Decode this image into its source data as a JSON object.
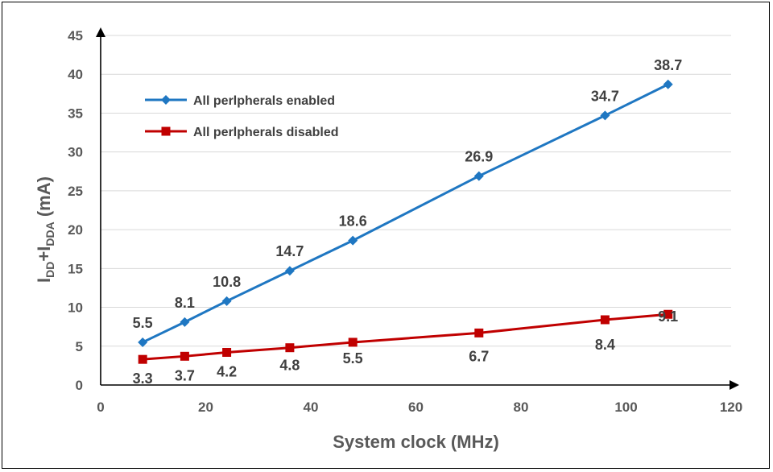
{
  "chart_data": {
    "type": "line",
    "xlabel": "System clock (MHz)",
    "ylabel": "I_DD+I_DDA (mA)",
    "ylabel_parts": [
      "I",
      "DD",
      "+I",
      "DDA",
      " (mA)"
    ],
    "xlim": [
      0,
      120
    ],
    "ylim": [
      0,
      45
    ],
    "xticks": [
      0,
      20,
      40,
      60,
      80,
      100,
      120
    ],
    "yticks": [
      0,
      5,
      10,
      15,
      20,
      25,
      30,
      35,
      40,
      45
    ],
    "grid": "horizontal",
    "legend_position": "top-left",
    "x": [
      8,
      16,
      24,
      36,
      48,
      72,
      96,
      108
    ],
    "series": [
      {
        "name": "All perlpherals enabled",
        "color": "#1F77C2",
        "marker": "diamond",
        "values": [
          5.5,
          8.1,
          10.8,
          14.7,
          18.6,
          26.9,
          34.7,
          38.7
        ],
        "labels": [
          "5.5",
          "8.1",
          "10.8",
          "14.7",
          "18.6",
          "26.9",
          "34.7",
          "38.7"
        ]
      },
      {
        "name": "All perlpherals disabled",
        "color": "#C00000",
        "marker": "square",
        "values": [
          3.3,
          3.7,
          4.2,
          4.8,
          5.5,
          6.7,
          8.4,
          9.1
        ],
        "labels": [
          "3.3",
          "3.7",
          "4.2",
          "4.8",
          "5.5",
          "6.7",
          "8.4",
          "9.1"
        ]
      }
    ]
  }
}
